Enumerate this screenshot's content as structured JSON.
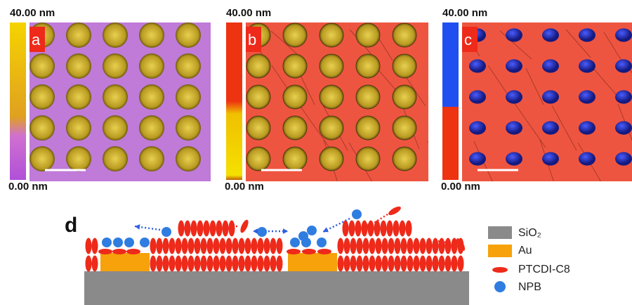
{
  "panels": [
    {
      "label": "a",
      "scale_max": "40.00 nm",
      "scale_min": "0.00 nm"
    },
    {
      "label": "b",
      "scale_max": "40.00 nm",
      "scale_min": "0.00 nm"
    },
    {
      "label": "c",
      "scale_max": "40.00 nm",
      "scale_min": "0.00 nm"
    }
  ],
  "schematic": {
    "label": "d",
    "legend": [
      {
        "label": "SiO₂"
      },
      {
        "label": "Au"
      },
      {
        "label": "PTCDI-C8"
      },
      {
        "label": "NPB"
      }
    ]
  }
}
